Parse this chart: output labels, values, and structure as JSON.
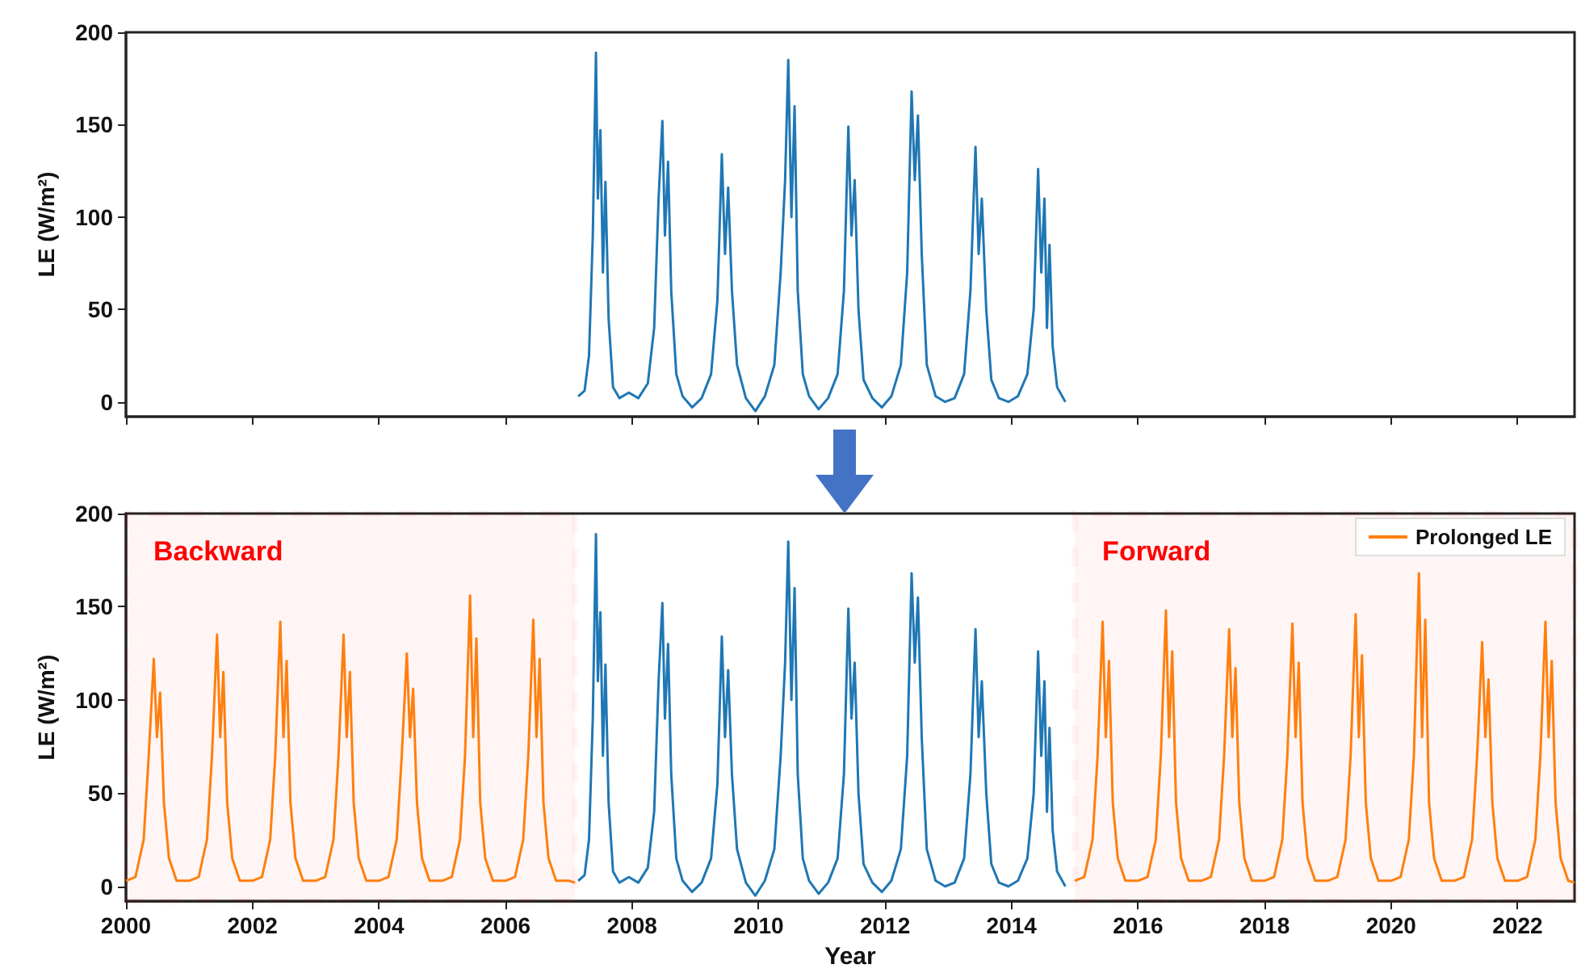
{
  "chart_data": [
    {
      "type": "line",
      "ylabel": "LE (W/m²)",
      "xlim": [
        2000,
        2022.9
      ],
      "xticks": [
        2000,
        2002,
        2004,
        2006,
        2008,
        2010,
        2012,
        2014,
        2016,
        2018,
        2020,
        2022
      ],
      "ylim": [
        -8,
        200
      ],
      "yticks": [
        0,
        50,
        100,
        150,
        200
      ],
      "tick_labels": "y",
      "legend": false,
      "grid": false,
      "marker": "none",
      "series": [
        {
          "color": "#1f77b4",
          "x": [
            2007.15,
            2007.25,
            2007.32,
            2007.38,
            2007.43,
            2007.46,
            2007.5,
            2007.54,
            2007.58,
            2007.63,
            2007.7,
            2007.8,
            2007.95,
            2008.1,
            2008.25,
            2008.35,
            2008.42,
            2008.48,
            2008.52,
            2008.57,
            2008.62,
            2008.7,
            2008.8,
            2008.95,
            2009.1,
            2009.25,
            2009.35,
            2009.42,
            2009.47,
            2009.52,
            2009.58,
            2009.66,
            2009.8,
            2009.95,
            2010.1,
            2010.25,
            2010.35,
            2010.42,
            2010.47,
            2010.52,
            2010.57,
            2010.62,
            2010.7,
            2010.8,
            2010.95,
            2011.1,
            2011.25,
            2011.35,
            2011.42,
            2011.47,
            2011.52,
            2011.58,
            2011.66,
            2011.8,
            2011.95,
            2012.1,
            2012.25,
            2012.35,
            2012.42,
            2012.47,
            2012.52,
            2012.58,
            2012.66,
            2012.8,
            2012.95,
            2013.1,
            2013.25,
            2013.35,
            2013.43,
            2013.48,
            2013.53,
            2013.6,
            2013.68,
            2013.8,
            2013.95,
            2014.1,
            2014.25,
            2014.35,
            2014.42,
            2014.47,
            2014.52,
            2014.56,
            2014.6,
            2014.65,
            2014.72,
            2014.85
          ],
          "values": [
            3,
            6,
            25,
            90,
            189,
            110,
            147,
            70,
            119,
            45,
            8,
            2,
            5,
            2,
            10,
            40,
            110,
            152,
            90,
            130,
            60,
            15,
            3,
            -3,
            2,
            15,
            55,
            134,
            80,
            116,
            60,
            20,
            2,
            -5,
            3,
            20,
            70,
            120,
            185,
            100,
            160,
            60,
            15,
            3,
            -4,
            2,
            15,
            60,
            149,
            90,
            120,
            50,
            12,
            2,
            -3,
            3,
            20,
            70,
            168,
            120,
            155,
            80,
            20,
            3,
            0,
            2,
            15,
            60,
            138,
            80,
            110,
            50,
            12,
            2,
            0,
            3,
            15,
            50,
            126,
            70,
            110,
            40,
            85,
            30,
            8,
            0
          ]
        }
      ]
    },
    {
      "type": "line",
      "xlabel": "Year",
      "ylabel": "LE (W/m²)",
      "xlim": [
        2000,
        2022.9
      ],
      "xticks": [
        2000,
        2002,
        2004,
        2006,
        2008,
        2010,
        2012,
        2014,
        2016,
        2018,
        2020,
        2022
      ],
      "ylim": [
        -8,
        200
      ],
      "yticks": [
        0,
        50,
        100,
        150,
        200
      ],
      "legend": "top right",
      "grid": false,
      "marker": "none",
      "bands": [
        {
          "axis": "x",
          "from": 2000,
          "to": 2007.1,
          "label": "Backward",
          "color": "#ff0000"
        },
        {
          "axis": "x",
          "from": 2015,
          "to": 2022.9,
          "label": "Forward",
          "color": "#ff0000"
        }
      ],
      "series": [
        {
          "color": "#1f77b4",
          "x": [
            2007.15,
            2007.25,
            2007.32,
            2007.38,
            2007.43,
            2007.46,
            2007.5,
            2007.54,
            2007.58,
            2007.63,
            2007.7,
            2007.8,
            2007.95,
            2008.1,
            2008.25,
            2008.35,
            2008.42,
            2008.48,
            2008.52,
            2008.57,
            2008.62,
            2008.7,
            2008.8,
            2008.95,
            2009.1,
            2009.25,
            2009.35,
            2009.42,
            2009.47,
            2009.52,
            2009.58,
            2009.66,
            2009.8,
            2009.95,
            2010.1,
            2010.25,
            2010.35,
            2010.42,
            2010.47,
            2010.52,
            2010.57,
            2010.62,
            2010.7,
            2010.8,
            2010.95,
            2011.1,
            2011.25,
            2011.35,
            2011.42,
            2011.47,
            2011.52,
            2011.58,
            2011.66,
            2011.8,
            2011.95,
            2012.1,
            2012.25,
            2012.35,
            2012.42,
            2012.47,
            2012.52,
            2012.58,
            2012.66,
            2012.8,
            2012.95,
            2013.1,
            2013.25,
            2013.35,
            2013.43,
            2013.48,
            2013.53,
            2013.6,
            2013.68,
            2013.8,
            2013.95,
            2014.1,
            2014.25,
            2014.35,
            2014.42,
            2014.47,
            2014.52,
            2014.56,
            2014.6,
            2014.65,
            2014.72,
            2014.85
          ],
          "values": [
            3,
            6,
            25,
            90,
            189,
            110,
            147,
            70,
            119,
            45,
            8,
            2,
            5,
            2,
            10,
            40,
            110,
            152,
            90,
            130,
            60,
            15,
            3,
            -3,
            2,
            15,
            55,
            134,
            80,
            116,
            60,
            20,
            2,
            -5,
            3,
            20,
            70,
            120,
            185,
            100,
            160,
            60,
            15,
            3,
            -4,
            2,
            15,
            60,
            149,
            90,
            120,
            50,
            12,
            2,
            -3,
            3,
            20,
            70,
            168,
            120,
            155,
            80,
            20,
            3,
            0,
            2,
            15,
            60,
            138,
            80,
            110,
            50,
            12,
            2,
            0,
            3,
            15,
            50,
            126,
            70,
            110,
            40,
            85,
            30,
            8,
            0
          ]
        },
        {
          "name": "Prolonged LE",
          "color": "#ff7f0e",
          "x": [
            2000,
            2000.15,
            2000.28,
            2000.36,
            2000.44,
            2000.49,
            2000.54,
            2000.6,
            2000.68,
            2000.8,
            2001,
            2001.15,
            2001.28,
            2001.36,
            2001.44,
            2001.49,
            2001.54,
            2001.6,
            2001.68,
            2001.8,
            2002,
            2002.15,
            2002.28,
            2002.36,
            2002.44,
            2002.49,
            2002.54,
            2002.6,
            2002.68,
            2002.8,
            2003,
            2003.15,
            2003.28,
            2003.36,
            2003.44,
            2003.49,
            2003.54,
            2003.6,
            2003.68,
            2003.8,
            2004,
            2004.15,
            2004.28,
            2004.36,
            2004.44,
            2004.49,
            2004.54,
            2004.6,
            2004.68,
            2004.8,
            2005,
            2005.15,
            2005.28,
            2005.36,
            2005.44,
            2005.49,
            2005.54,
            2005.6,
            2005.68,
            2005.8,
            2006,
            2006.15,
            2006.28,
            2006.36,
            2006.44,
            2006.49,
            2006.54,
            2006.6,
            2006.68,
            2006.8,
            2007,
            2007.1,
            2011,
            2015,
            2015.15,
            2015.28,
            2015.36,
            2015.44,
            2015.49,
            2015.54,
            2015.6,
            2015.68,
            2015.8,
            2016,
            2016.15,
            2016.28,
            2016.36,
            2016.44,
            2016.49,
            2016.54,
            2016.6,
            2016.68,
            2016.8,
            2017,
            2017.15,
            2017.28,
            2017.36,
            2017.44,
            2017.49,
            2017.54,
            2017.6,
            2017.68,
            2017.8,
            2018,
            2018.15,
            2018.28,
            2018.36,
            2018.44,
            2018.49,
            2018.54,
            2018.6,
            2018.68,
            2018.8,
            2019,
            2019.15,
            2019.28,
            2019.36,
            2019.44,
            2019.49,
            2019.54,
            2019.6,
            2019.68,
            2019.8,
            2020,
            2020.15,
            2020.28,
            2020.36,
            2020.44,
            2020.49,
            2020.54,
            2020.6,
            2020.68,
            2020.8,
            2021,
            2021.15,
            2021.28,
            2021.36,
            2021.44,
            2021.49,
            2021.54,
            2021.6,
            2021.68,
            2021.8,
            2022,
            2022.15,
            2022.28,
            2022.36,
            2022.44,
            2022.49,
            2022.54,
            2022.6,
            2022.68,
            2022.8,
            2022.9
          ],
          "values": [
            3,
            5,
            25,
            70,
            122,
            80,
            104,
            45,
            15,
            3,
            3,
            5,
            25,
            70,
            135,
            80,
            115,
            45,
            15,
            3,
            3,
            5,
            25,
            70,
            142,
            80,
            121,
            45,
            15,
            3,
            3,
            5,
            25,
            70,
            135,
            80,
            115,
            45,
            15,
            3,
            3,
            5,
            25,
            70,
            125,
            80,
            106,
            45,
            15,
            3,
            3,
            5,
            25,
            70,
            156,
            80,
            133,
            45,
            15,
            3,
            3,
            5,
            25,
            70,
            143,
            80,
            122,
            45,
            15,
            3,
            3,
            2,
            null,
            3,
            5,
            25,
            70,
            142,
            80,
            121,
            45,
            15,
            3,
            3,
            5,
            25,
            70,
            148,
            80,
            126,
            45,
            15,
            3,
            3,
            5,
            25,
            70,
            138,
            80,
            117,
            45,
            15,
            3,
            3,
            5,
            25,
            70,
            141,
            80,
            120,
            45,
            15,
            3,
            3,
            5,
            25,
            70,
            146,
            80,
            124,
            45,
            15,
            3,
            3,
            5,
            25,
            70,
            168,
            80,
            143,
            45,
            15,
            3,
            3,
            5,
            25,
            70,
            131,
            80,
            111,
            45,
            15,
            3,
            3,
            5,
            25,
            70,
            142,
            80,
            121,
            45,
            15,
            3,
            2
          ]
        }
      ]
    }
  ]
}
